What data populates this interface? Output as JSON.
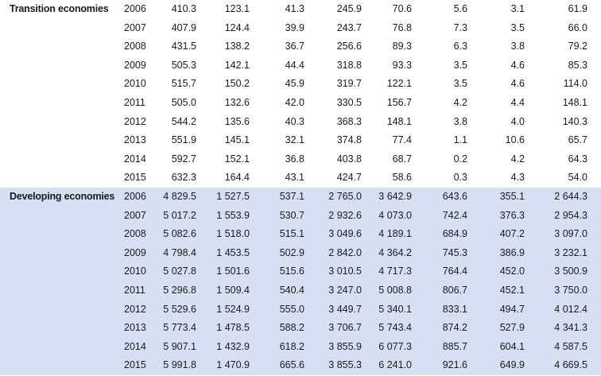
{
  "table": {
    "groups": [
      {
        "label": "Transition economies",
        "shaded": false,
        "rows": [
          {
            "year": "2006",
            "values": [
              "410.3",
              "123.1",
              "41.3",
              "245.9",
              "70.6",
              "5.6",
              "3.1",
              "61.9"
            ]
          },
          {
            "year": "2007",
            "values": [
              "407.9",
              "124.4",
              "39.9",
              "243.7",
              "76.8",
              "7.3",
              "3.5",
              "66.0"
            ]
          },
          {
            "year": "2008",
            "values": [
              "431.5",
              "138.2",
              "36.7",
              "256.6",
              "89.3",
              "6.3",
              "3.8",
              "79.2"
            ]
          },
          {
            "year": "2009",
            "values": [
              "505.3",
              "142.1",
              "44.4",
              "318.8",
              "93.3",
              "3.5",
              "4.6",
              "85.3"
            ]
          },
          {
            "year": "2010",
            "values": [
              "515.7",
              "150.2",
              "45.9",
              "319.7",
              "122.1",
              "3.5",
              "4.6",
              "114.0"
            ]
          },
          {
            "year": "2011",
            "values": [
              "505.0",
              "132.6",
              "42.0",
              "330.5",
              "156.7",
              "4.2",
              "4.4",
              "148.1"
            ]
          },
          {
            "year": "2012",
            "values": [
              "544.2",
              "135.6",
              "40.3",
              "368.3",
              "148.1",
              "3.8",
              "4.0",
              "140.3"
            ]
          },
          {
            "year": "2013",
            "values": [
              "551.9",
              "145.1",
              "32.1",
              "374.8",
              "77.4",
              "1.1",
              "10.6",
              "65.7"
            ]
          },
          {
            "year": "2014",
            "values": [
              "592.7",
              "152.1",
              "36.8",
              "403.8",
              "68.7",
              "0.2",
              "4.2",
              "64.3"
            ]
          },
          {
            "year": "2015",
            "values": [
              "632.3",
              "164.4",
              "43.1",
              "424.7",
              "58.6",
              "0.3",
              "4.3",
              "54.0"
            ]
          }
        ]
      },
      {
        "label": "Developing economies",
        "shaded": true,
        "rows": [
          {
            "year": "2006",
            "values": [
              "4 829.5",
              "1 527.5",
              "537.1",
              "2 765.0",
              "3 642.9",
              "643.6",
              "355.1",
              "2 644.3"
            ]
          },
          {
            "year": "2007",
            "values": [
              "5 017.2",
              "1 553.9",
              "530.7",
              "2 932.6",
              "4 073.0",
              "742.4",
              "376.3",
              "2 954.3"
            ]
          },
          {
            "year": "2008",
            "values": [
              "5 082.6",
              "1 518.0",
              "515.1",
              "3 049.6",
              "4 189.1",
              "684.9",
              "407.2",
              "3 097.0"
            ]
          },
          {
            "year": "2009",
            "values": [
              "4 798.4",
              "1 453.5",
              "502.9",
              "2 842.0",
              "4 364.2",
              "745.3",
              "386.9",
              "3 232.1"
            ]
          },
          {
            "year": "2010",
            "values": [
              "5 027.8",
              "1 501.6",
              "515.6",
              "3 010.5",
              "4 717.3",
              "764.4",
              "452.0",
              "3 500.9"
            ]
          },
          {
            "year": "2011",
            "values": [
              "5 296.8",
              "1 509.4",
              "540.4",
              "3 247.0",
              "5 008.8",
              "806.7",
              "452.1",
              "3 750.0"
            ]
          },
          {
            "year": "2012",
            "values": [
              "5 529.6",
              "1 524.9",
              "555.0",
              "3 449.7",
              "5 340.1",
              "833.1",
              "494.7",
              "4 012.4"
            ]
          },
          {
            "year": "2013",
            "values": [
              "5 773.4",
              "1 478.5",
              "588.2",
              "3 706.7",
              "5 743.4",
              "874.2",
              "527.9",
              "4 341.3"
            ]
          },
          {
            "year": "2014",
            "values": [
              "5 907.1",
              "1 432.9",
              "618.2",
              "3 855.9",
              "6 077.3",
              "885.7",
              "604.1",
              "4 587.5"
            ]
          },
          {
            "year": "2015",
            "values": [
              "5 991.8",
              "1 470.9",
              "665.6",
              "3 855.3",
              "6 241.0",
              "921.6",
              "649.9",
              "4 669.5"
            ]
          }
        ]
      }
    ]
  }
}
